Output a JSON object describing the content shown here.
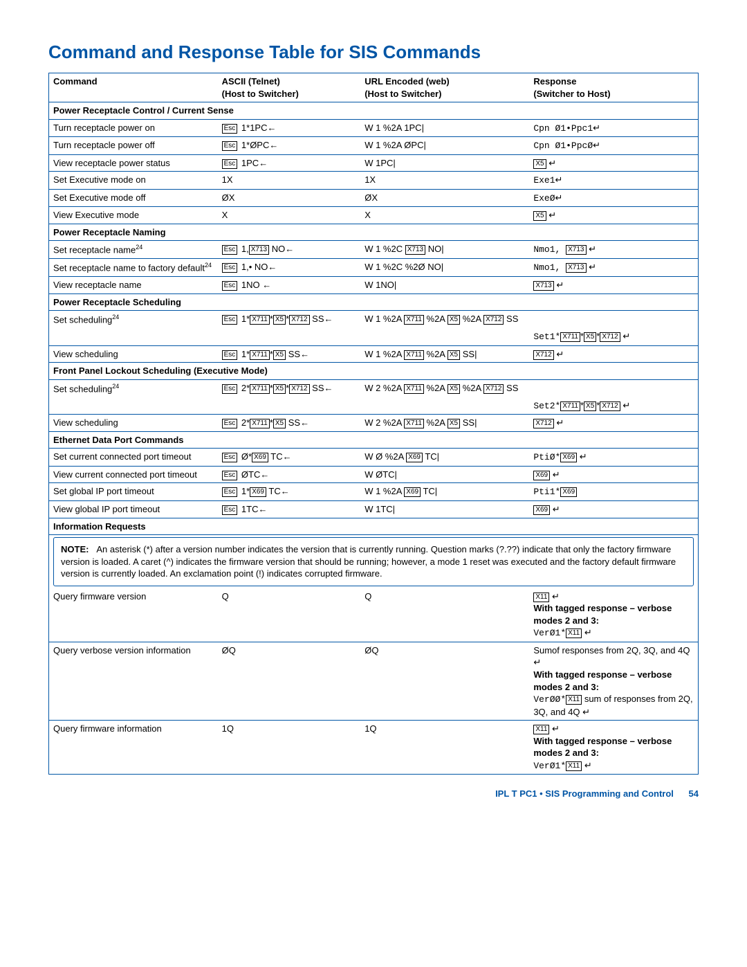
{
  "title": "Command and Response Table for SIS Commands",
  "headers": {
    "c1": "Command",
    "c2a": "ASCII (Telnet)",
    "c2b": "Host to Switcher)",
    "c3a": "URL Encoded (web)",
    "c3b": "Host to Switcher)",
    "c4a": "Response",
    "c4b": "Switcher to Host)"
  },
  "sections": {
    "s1": "Power Receptacle Control / Current Sense",
    "s2": "Power Receptacle Naming",
    "s3": "Power Receptacle Scheduling",
    "s4": "Front Panel Lockout Scheduling (Executive Mode)",
    "s5": "Ethernet Data Port Commands",
    "s6": "Information Requests"
  },
  "rows": {
    "r1": {
      "cmd": "Turn receptacle power on",
      "a": " 1*1PC",
      "u": "W 1 %2A 1PC|",
      "r": "Cpn Ø1•Ppc1"
    },
    "r2": {
      "cmd": "Turn receptacle power off",
      "a": " 1*ØPC",
      "u": "W 1 %2A ØPC|",
      "r": "Cpn Ø1•PpcØ"
    },
    "r3": {
      "cmd": "View receptacle power status",
      "a": " 1PC",
      "u": "W 1PC|",
      "rx": "X5"
    },
    "r4": {
      "cmd": "Set Executive mode on",
      "a": "1X",
      "u": "1X",
      "r": "Exe1"
    },
    "r5": {
      "cmd": "Set Executive mode off",
      "a": "ØX",
      "u": "ØX",
      "r": "ExeØ"
    },
    "r6": {
      "cmd": "View Executive mode",
      "a": "X",
      "u": "X",
      "rx": "X5"
    },
    "r7": {
      "cmd": "Set receptacle name",
      "a": " 1,",
      "ax": "X713",
      "a2": " NO",
      "u": "W 1 %2C ",
      "ux": "X713",
      "u2": " NO|",
      "r": "Nmo1, ",
      "rxx": "X713"
    },
    "r8": {
      "cmd": "Set receptacle name to factory default",
      "a": " 1,• NO",
      "u": "W 1 %2C %2Ø NO|",
      "r": "Nmo1, ",
      "rxx": "X713"
    },
    "r9": {
      "cmd": "View receptacle name",
      "a": " 1NO ",
      "u": "W 1NO|",
      "rxx": "X713"
    },
    "r10": {
      "cmd": "Set scheduling",
      "a": " 1*",
      "a2": " SS",
      "u": "W 1 %2A ",
      "u2": " SS",
      "r": "Set1*",
      "rparts": [
        "X711",
        "*",
        "X5",
        "*",
        "X712"
      ]
    },
    "r11": {
      "cmd": "View scheduling",
      "a": " 1*",
      "a2": " SS",
      "u": "W 1 %2A ",
      "u2": " SS|",
      "rxx": "X712"
    },
    "r12": {
      "cmd": "Set scheduling",
      "a": " 2*",
      "a2": " SS",
      "u": "W 2 %2A ",
      "u2": " SS",
      "r": "Set2*",
      "rparts": [
        "X711",
        "*",
        "X5",
        "*",
        "X712"
      ]
    },
    "r13": {
      "cmd": "View scheduling",
      "a": " 2*",
      "a2": " SS",
      "u": "W 2 %2A ",
      "u2": " SS|",
      "rxx": "X712"
    },
    "r14": {
      "cmd": "Set current connected port timeout",
      "a": " Ø*",
      "ax": "X69",
      "a2": " TC",
      "u": "W Ø %2A ",
      "ux": "X69",
      "u2": " TC|",
      "r": "PtiØ*",
      "rxx": "X69"
    },
    "r15": {
      "cmd": "View current connected port timeout",
      "a": " ØTC",
      "u": "W ØTC|",
      "rxx": "X69"
    },
    "r16": {
      "cmd": "Set global IP port timeout",
      "a": " 1*",
      "ax": "X69",
      "a2": " TC",
      "u": "W 1 %2A ",
      "ux": "X69",
      "u2": " TC|",
      "r": "Pti1*",
      "rxx": "X69",
      "noenter": true
    },
    "r17": {
      "cmd": "View global IP port timeout",
      "a": " 1TC",
      "u": "W 1TC|",
      "rxx": "X69"
    },
    "q1": {
      "cmd": "Query firmware version",
      "a": "Q",
      "u": "Q"
    },
    "q2": {
      "cmd": "Query verbose version information",
      "a": "ØQ",
      "u": "ØQ"
    },
    "q3": {
      "cmd": "Query firmware information",
      "a": "1Q",
      "u": "1Q"
    }
  },
  "tagged": "With tagged response – verbose modes 2 and 3:",
  "resp": {
    "q1a": "VerØ1*",
    "q2a": "Sumof responses from 2Q, 3Q, and 4Q ",
    "q2b": "VerØØ*",
    "q2b2": " sum of responses from 2Q, 3Q, and 4Q ",
    "q3a": "VerØ1*"
  },
  "note_label": "NOTE:",
  "note": "An asterisk (*) after a version number indicates the version that is currently running. Question marks (?.??) indicate that only the factory firmware version is loaded. A caret (^) indicates the firmware version that should be running; however, a mode 1 reset was executed and the factory default firmware version is currently loaded. An exclamation point (!) indicates corrupted firmware.",
  "footer": "IPL T PC1 • SIS Programming and Control",
  "page": "54",
  "vars": {
    "x5": "X5",
    "x11": "X11",
    "x69": "X69",
    "x711": "X711",
    "x712": "X712",
    "x713": "X713"
  }
}
